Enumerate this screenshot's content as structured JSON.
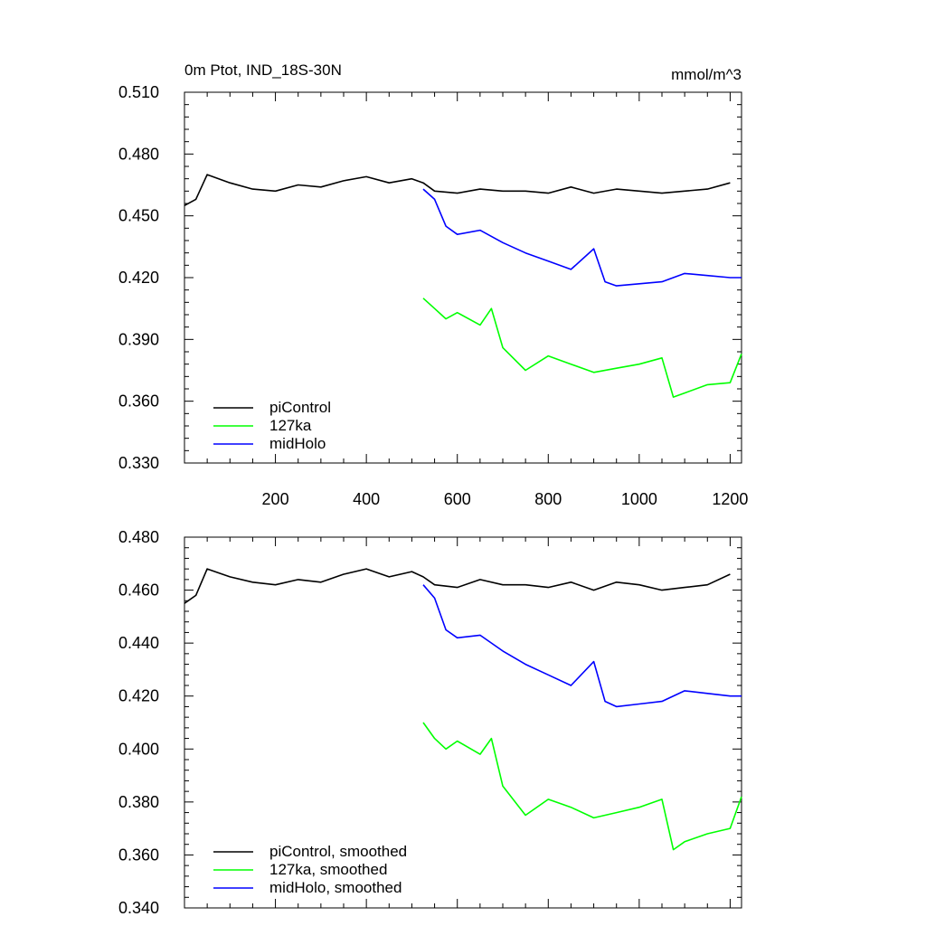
{
  "chart_data": [
    {
      "type": "line",
      "title": "0m Ptot, IND_18S-30N",
      "units": "mmol/m^3",
      "xlabel": "",
      "ylabel": "",
      "xlim": [
        0,
        1225
      ],
      "ylim": [
        0.33,
        0.51
      ],
      "xticks": [
        200,
        400,
        600,
        800,
        1000,
        1200
      ],
      "xtick_labels": [
        "200",
        "400",
        "600",
        "800",
        "1000",
        "1200"
      ],
      "yticks": [
        0.33,
        0.36,
        0.39,
        0.42,
        0.45,
        0.48,
        0.51
      ],
      "ytick_labels": [
        "0.330",
        "0.360",
        "0.390",
        "0.420",
        "0.450",
        "0.480",
        "0.510"
      ],
      "legend_position": "bottom-left",
      "series": [
        {
          "name": "piControl",
          "color": "#000000",
          "x": [
            0,
            25,
            50,
            100,
            150,
            200,
            250,
            300,
            350,
            400,
            450,
            500,
            525,
            550,
            600,
            650,
            700,
            750,
            800,
            850,
            900,
            950,
            1000,
            1050,
            1100,
            1150,
            1200
          ],
          "values": [
            0.455,
            0.458,
            0.47,
            0.466,
            0.463,
            0.462,
            0.465,
            0.464,
            0.467,
            0.469,
            0.466,
            0.468,
            0.466,
            0.462,
            0.461,
            0.463,
            0.462,
            0.462,
            0.461,
            0.464,
            0.461,
            0.463,
            0.462,
            0.461,
            0.462,
            0.463,
            0.466
          ]
        },
        {
          "name": "127ka",
          "color": "#00ff00",
          "x": [
            525,
            550,
            575,
            600,
            650,
            675,
            700,
            750,
            800,
            850,
            900,
            950,
            1000,
            1050,
            1075,
            1100,
            1150,
            1200,
            1225
          ],
          "values": [
            0.41,
            0.405,
            0.4,
            0.403,
            0.397,
            0.405,
            0.386,
            0.375,
            0.382,
            0.378,
            0.374,
            0.376,
            0.378,
            0.381,
            0.362,
            0.364,
            0.368,
            0.369,
            0.383
          ]
        },
        {
          "name": "midHolo",
          "color": "#0000ff",
          "x": [
            525,
            550,
            575,
            600,
            650,
            700,
            750,
            800,
            850,
            900,
            925,
            950,
            1000,
            1050,
            1100,
            1150,
            1200,
            1225
          ],
          "values": [
            0.463,
            0.458,
            0.445,
            0.441,
            0.443,
            0.437,
            0.432,
            0.428,
            0.424,
            0.434,
            0.418,
            0.416,
            0.417,
            0.418,
            0.422,
            0.421,
            0.42,
            0.42
          ]
        }
      ],
      "legend": [
        "piControl",
        "127ka",
        "midHolo"
      ]
    },
    {
      "type": "line",
      "title": "",
      "xlabel": "",
      "ylabel": "",
      "xlim": [
        0,
        1225
      ],
      "ylim": [
        0.34,
        0.48
      ],
      "xticks": [
        200,
        400,
        600,
        800,
        1000,
        1200
      ],
      "yticks": [
        0.34,
        0.36,
        0.38,
        0.4,
        0.42,
        0.44,
        0.46,
        0.48
      ],
      "ytick_labels": [
        "0.340",
        "0.360",
        "0.380",
        "0.400",
        "0.420",
        "0.440",
        "0.460",
        "0.480"
      ],
      "legend_position": "bottom-left",
      "series": [
        {
          "name": "piControl, smoothed",
          "color": "#000000",
          "x": [
            0,
            25,
            50,
            100,
            150,
            200,
            250,
            300,
            350,
            400,
            450,
            500,
            525,
            550,
            600,
            650,
            700,
            750,
            800,
            850,
            900,
            950,
            1000,
            1050,
            1100,
            1150,
            1200
          ],
          "values": [
            0.455,
            0.458,
            0.468,
            0.465,
            0.463,
            0.462,
            0.464,
            0.463,
            0.466,
            0.468,
            0.465,
            0.467,
            0.465,
            0.462,
            0.461,
            0.464,
            0.462,
            0.462,
            0.461,
            0.463,
            0.46,
            0.463,
            0.462,
            0.46,
            0.461,
            0.462,
            0.466
          ]
        },
        {
          "name": "127ka, smoothed",
          "color": "#00ff00",
          "x": [
            525,
            550,
            575,
            600,
            650,
            675,
            700,
            750,
            800,
            850,
            900,
            950,
            1000,
            1050,
            1075,
            1100,
            1150,
            1200,
            1225
          ],
          "values": [
            0.41,
            0.404,
            0.4,
            0.403,
            0.398,
            0.404,
            0.386,
            0.375,
            0.381,
            0.378,
            0.374,
            0.376,
            0.378,
            0.381,
            0.362,
            0.365,
            0.368,
            0.37,
            0.382
          ]
        },
        {
          "name": "midHolo, smoothed",
          "color": "#0000ff",
          "x": [
            525,
            550,
            575,
            600,
            650,
            700,
            750,
            800,
            850,
            900,
            925,
            950,
            1000,
            1050,
            1100,
            1150,
            1200,
            1225
          ],
          "values": [
            0.462,
            0.457,
            0.445,
            0.442,
            0.443,
            0.437,
            0.432,
            0.428,
            0.424,
            0.433,
            0.418,
            0.416,
            0.417,
            0.418,
            0.422,
            0.421,
            0.42,
            0.42
          ]
        }
      ],
      "legend": [
        "piControl, smoothed",
        "127ka, smoothed",
        "midHolo, smoothed"
      ]
    }
  ]
}
